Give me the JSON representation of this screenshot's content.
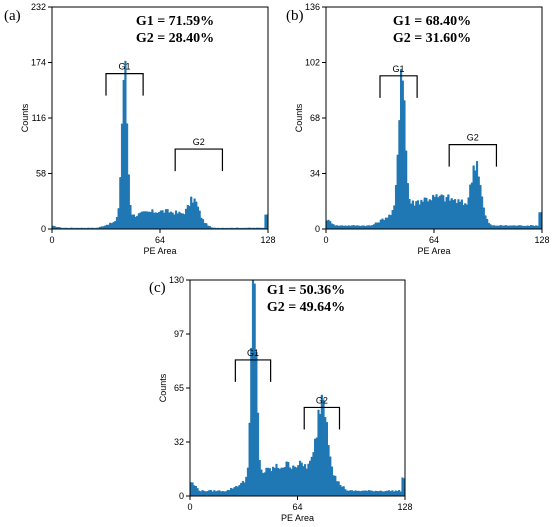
{
  "chart_data": [
    {
      "type": "area",
      "panel_label": "(a)",
      "stats": [
        "G1 = 71.59%",
        "G2 = 28.40%"
      ],
      "xlabel": "PE Area",
      "ylabel": "Counts",
      "xlim": [
        0,
        128
      ],
      "ylim": [
        0,
        232
      ],
      "x_ticks": [
        "0",
        "64",
        "128"
      ],
      "y_ticks": [
        "0",
        "58",
        "116",
        "174",
        "232"
      ],
      "gates": [
        {
          "label": "G1",
          "range": [
            32,
            54
          ],
          "level": 0.7
        },
        {
          "label": "G2",
          "range": [
            73,
            101
          ],
          "level": 0.36
        }
      ],
      "peaks": [
        {
          "center": 43,
          "height": 158,
          "width": 1.6
        },
        {
          "center": 84,
          "height": 20,
          "width": 2.8
        }
      ],
      "baseline": 1,
      "shoulder_start": 27,
      "shoulder_end": 95,
      "shoulder_level": 22
    },
    {
      "type": "area",
      "panel_label": "(b)",
      "stats": [
        "G1 = 68.40%",
        "G2 = 31.60%"
      ],
      "xlabel": "PE Area",
      "ylabel": "Counts",
      "xlim": [
        0,
        128
      ],
      "ylim": [
        0,
        136
      ],
      "x_ticks": [
        "0",
        "64",
        "128"
      ],
      "y_ticks": [
        "0",
        "34",
        "68",
        "102",
        "136"
      ],
      "gates": [
        {
          "label": "G1",
          "range": [
            32,
            54
          ],
          "level": 0.69
        },
        {
          "label": "G2",
          "range": [
            73,
            101
          ],
          "level": 0.38
        }
      ],
      "peaks": [
        {
          "center": 45,
          "height": 92,
          "width": 1.8
        },
        {
          "center": 89,
          "height": 32,
          "width": 2.5
        }
      ],
      "baseline": 2,
      "shoulder_start": 27,
      "shoulder_end": 98,
      "shoulder_level": 22
    },
    {
      "type": "area",
      "panel_label": "(c)",
      "stats": [
        "G1 = 50.36%",
        "G2 = 49.64%"
      ],
      "xlabel": "PE Area",
      "ylabel": "Counts",
      "xlim": [
        0,
        128
      ],
      "ylim": [
        0,
        130
      ],
      "x_ticks": [
        "0",
        "64",
        "128"
      ],
      "y_ticks": [
        "0",
        "32",
        "65",
        "97",
        "130"
      ],
      "gates": [
        {
          "label": "G1",
          "range": [
            27,
            48
          ],
          "level": 0.63
        },
        {
          "label": "G2",
          "range": [
            68,
            89
          ],
          "level": 0.41
        }
      ],
      "peaks": [
        {
          "center": 38,
          "height": 112,
          "width": 1.6
        },
        {
          "center": 79,
          "height": 47,
          "width": 3.0
        }
      ],
      "baseline": 3,
      "shoulder_start": 22,
      "shoulder_end": 94,
      "shoulder_level": 20
    }
  ]
}
